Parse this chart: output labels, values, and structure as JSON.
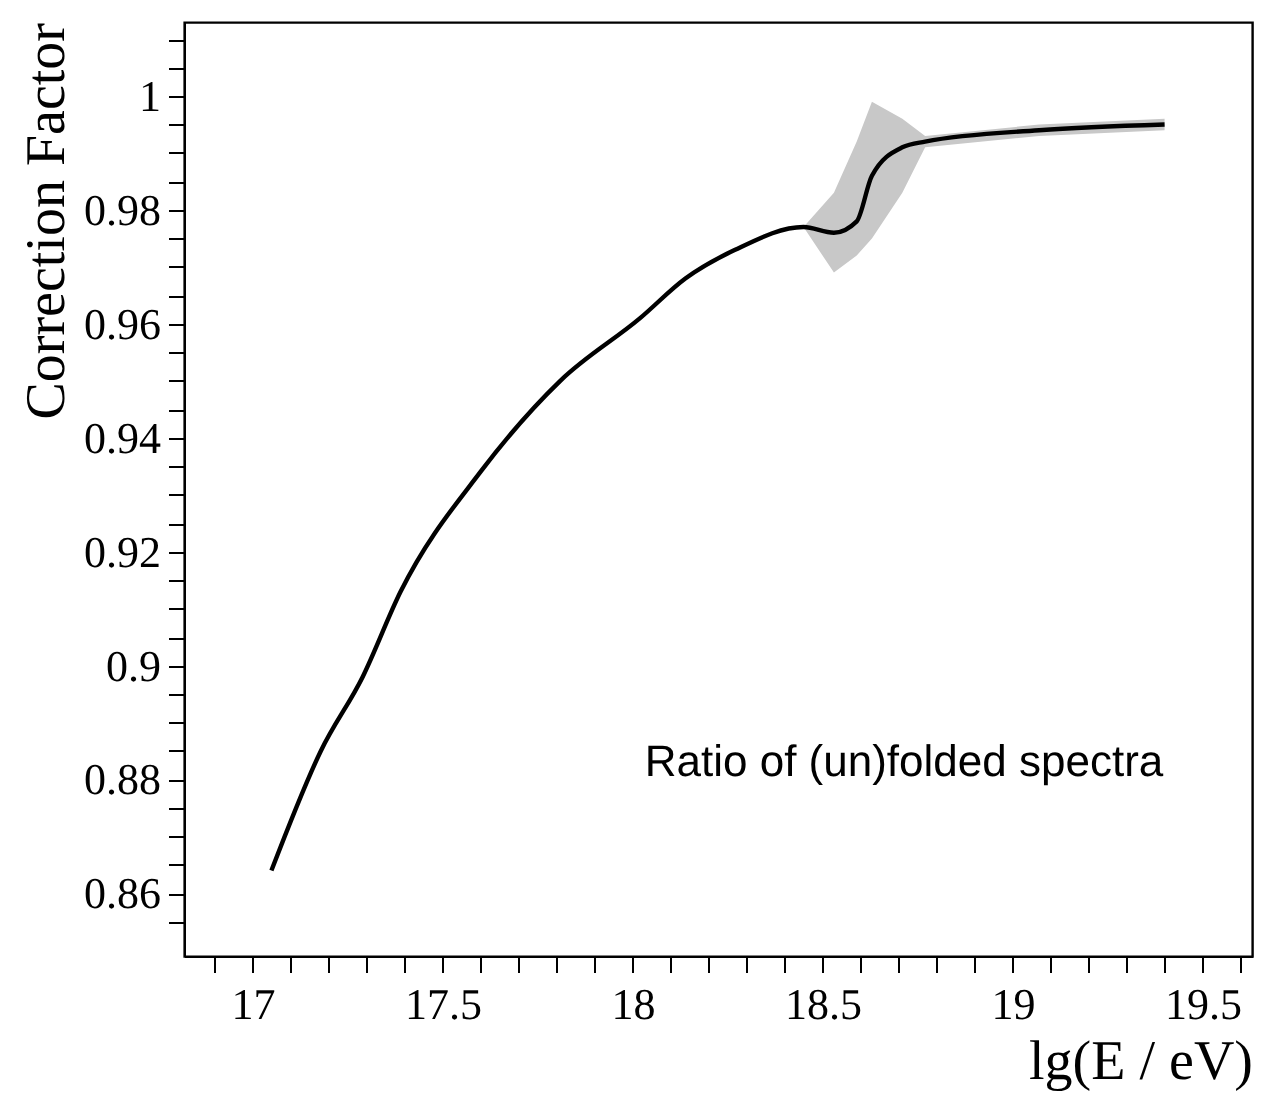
{
  "chart_data": {
    "type": "line",
    "xlabel": "lg(E / eV)",
    "ylabel": "Correction Factor",
    "annotations": [
      "Ratio of (un)folded spectra"
    ],
    "xlim": [
      16.82,
      19.63
    ],
    "ylim": [
      0.849,
      1.013
    ],
    "xticks": [
      {
        "value": 16.9,
        "label": null
      },
      17,
      {
        "value": 17.1,
        "label": null
      },
      {
        "value": 17.2,
        "label": null
      },
      {
        "value": 17.3,
        "label": null
      },
      {
        "value": 17.4,
        "label": null
      },
      17.5,
      {
        "value": 17.6,
        "label": null
      },
      {
        "value": 17.7,
        "label": null
      },
      {
        "value": 17.8,
        "label": null
      },
      {
        "value": 17.9,
        "label": null
      },
      18,
      {
        "value": 18.1,
        "label": null
      },
      {
        "value": 18.2,
        "label": null
      },
      {
        "value": 18.3,
        "label": null
      },
      {
        "value": 18.4,
        "label": null
      },
      18.5,
      {
        "value": 18.6,
        "label": null
      },
      {
        "value": 18.7,
        "label": null
      },
      {
        "value": 18.8,
        "label": null
      },
      {
        "value": 18.9,
        "label": null
      },
      19,
      {
        "value": 19.1,
        "label": null
      },
      {
        "value": 19.2,
        "label": null
      },
      {
        "value": 19.3,
        "label": null
      },
      {
        "value": 19.4,
        "label": null
      },
      19.5,
      {
        "value": 19.6,
        "label": null
      }
    ],
    "yticks": [
      {
        "value": 0.855,
        "label": null
      },
      0.86,
      {
        "value": 0.865,
        "label": null
      },
      {
        "value": 0.87,
        "label": null
      },
      {
        "value": 0.875,
        "label": null
      },
      0.88,
      {
        "value": 0.885,
        "label": null
      },
      {
        "value": 0.89,
        "label": null
      },
      {
        "value": 0.895,
        "label": null
      },
      0.9,
      {
        "value": 0.905,
        "label": null
      },
      {
        "value": 0.91,
        "label": null
      },
      {
        "value": 0.915,
        "label": null
      },
      0.92,
      {
        "value": 0.925,
        "label": null
      },
      {
        "value": 0.93,
        "label": null
      },
      {
        "value": 0.935,
        "label": null
      },
      0.94,
      {
        "value": 0.945,
        "label": null
      },
      {
        "value": 0.95,
        "label": null
      },
      {
        "value": 0.955,
        "label": null
      },
      0.96,
      {
        "value": 0.965,
        "label": null
      },
      {
        "value": 0.97,
        "label": null
      },
      {
        "value": 0.975,
        "label": null
      },
      0.98,
      {
        "value": 0.985,
        "label": null
      },
      {
        "value": 0.99,
        "label": null
      },
      {
        "value": 0.995,
        "label": null
      },
      1,
      {
        "value": 1.005,
        "label": null
      },
      {
        "value": 1.01,
        "label": null
      }
    ],
    "grid": false,
    "marker": "none",
    "line_style": "solid",
    "series": [
      {
        "color": "#000000",
        "x": [
          17.05,
          17.18,
          17.29,
          17.39,
          17.6,
          17.81,
          18.02,
          18.14,
          18.27,
          18.45,
          18.53,
          18.59,
          18.63,
          18.71,
          18.77,
          19.07,
          19.4
        ],
        "values": [
          0.864,
          0.885,
          0.898,
          0.913,
          0.934,
          0.95,
          0.961,
          0.968,
          0.973,
          0.977,
          0.976,
          0.978,
          0.986,
          0.991,
          0.992,
          0.994,
          0.995
        ],
        "lower": [
          null,
          null,
          null,
          null,
          null,
          null,
          null,
          null,
          null,
          0.977,
          0.969,
          0.972,
          0.975,
          0.983,
          0.991,
          0.993,
          0.994
        ],
        "upper": [
          null,
          null,
          null,
          null,
          null,
          null,
          null,
          null,
          null,
          0.977,
          0.983,
          0.992,
          0.999,
          0.996,
          0.993,
          0.995,
          0.996
        ]
      }
    ]
  }
}
